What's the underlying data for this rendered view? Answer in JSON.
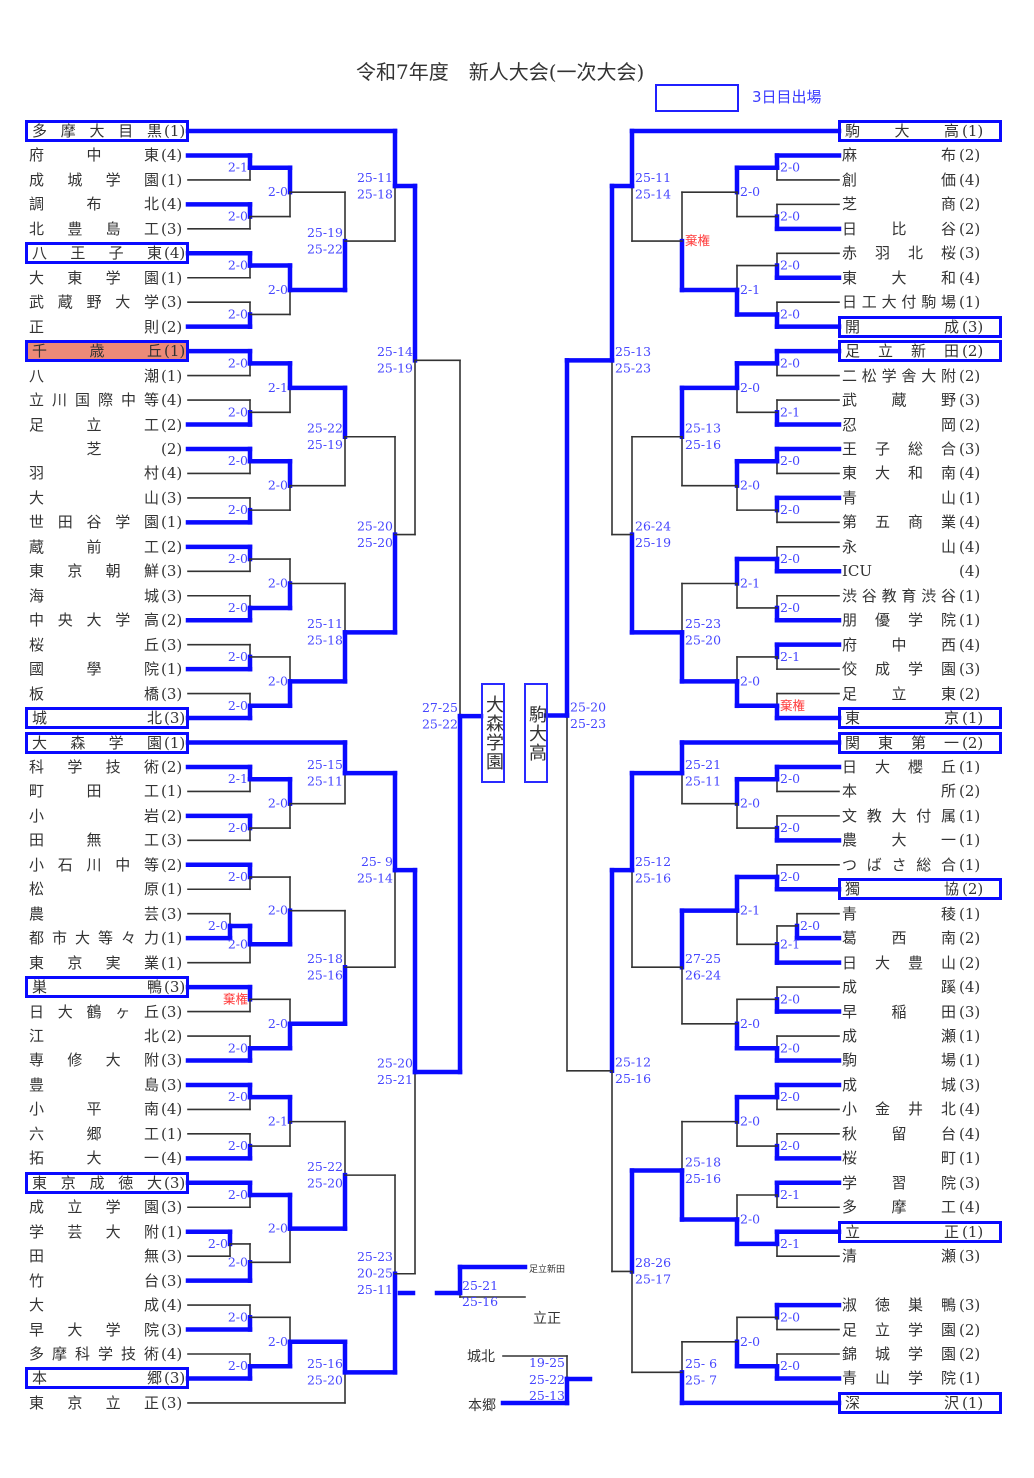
{
  "title": "令和7年度　新人大会(一次大会)",
  "legend": {
    "label": "3日目出場",
    "color": "#0a0aff"
  },
  "colors": {
    "winner_line": "#0a0aff",
    "score_text": "#4646ff",
    "forfeit_text": "#ff3a3a",
    "highlight_fill": "#ec8a78"
  },
  "left_teams": [
    {
      "name": "多摩大目黒",
      "pool": "(1)",
      "boxed": true
    },
    {
      "name": "府中東",
      "pool": "(4)"
    },
    {
      "name": "成城学園",
      "pool": "(1)"
    },
    {
      "name": "調布北",
      "pool": "(4)"
    },
    {
      "name": "北豊島工",
      "pool": "(3)"
    },
    {
      "name": "八王子東",
      "pool": "(4)",
      "boxed": true
    },
    {
      "name": "大東学園",
      "pool": "(1)"
    },
    {
      "name": "武蔵野大学",
      "pool": "(3)"
    },
    {
      "name": "正則",
      "pool": "(2)"
    },
    {
      "name": "千歳丘",
      "pool": "(1)",
      "boxed": true,
      "highlight": true
    },
    {
      "name": "八潮",
      "pool": "(1)"
    },
    {
      "name": "立川国際中等",
      "pool": "(4)"
    },
    {
      "name": "足立工",
      "pool": "(2)"
    },
    {
      "name": "芝",
      "pool": "(2)"
    },
    {
      "name": "羽村",
      "pool": "(4)"
    },
    {
      "name": "大山",
      "pool": "(3)"
    },
    {
      "name": "世田谷学園",
      "pool": "(1)"
    },
    {
      "name": "蔵前工",
      "pool": "(2)"
    },
    {
      "name": "東京朝鮮",
      "pool": "(3)"
    },
    {
      "name": "海城",
      "pool": "(3)"
    },
    {
      "name": "中央大学高",
      "pool": "(2)"
    },
    {
      "name": "桜丘",
      "pool": "(3)"
    },
    {
      "name": "國學院",
      "pool": "(1)"
    },
    {
      "name": "板橋",
      "pool": "(3)"
    },
    {
      "name": "城北",
      "pool": "(3)",
      "boxed": true
    },
    {
      "name": "大森学園",
      "pool": "(1)",
      "boxed": true
    },
    {
      "name": "科学技術",
      "pool": "(2)"
    },
    {
      "name": "町田工",
      "pool": "(1)"
    },
    {
      "name": "小岩",
      "pool": "(2)"
    },
    {
      "name": "田無工",
      "pool": "(3)"
    },
    {
      "name": "小石川中等",
      "pool": "(2)"
    },
    {
      "name": "松原",
      "pool": "(1)"
    },
    {
      "name": "農芸",
      "pool": "(3)"
    },
    {
      "name": "都市大等々力",
      "pool": "(1)"
    },
    {
      "name": "東京実業",
      "pool": "(1)"
    },
    {
      "name": "巣鴨",
      "pool": "(3)",
      "boxed": true
    },
    {
      "name": "日大鶴ヶ丘",
      "pool": "(3)"
    },
    {
      "name": "江北",
      "pool": "(2)"
    },
    {
      "name": "専修大附",
      "pool": "(3)"
    },
    {
      "name": "豊島",
      "pool": "(3)"
    },
    {
      "name": "小平南",
      "pool": "(4)"
    },
    {
      "name": "六郷工",
      "pool": "(1)"
    },
    {
      "name": "拓大一",
      "pool": "(4)"
    },
    {
      "name": "東京成徳大",
      "pool": "(3)",
      "boxed": true
    },
    {
      "name": "成立学園",
      "pool": "(3)"
    },
    {
      "name": "学芸大附",
      "pool": "(1)"
    },
    {
      "name": "田無",
      "pool": "(3)"
    },
    {
      "name": "竹台",
      "pool": "(3)"
    },
    {
      "name": "大成",
      "pool": "(4)"
    },
    {
      "name": "早大学院",
      "pool": "(3)"
    },
    {
      "name": "多摩科学技術",
      "pool": "(4)"
    },
    {
      "name": "本郷",
      "pool": "(3)",
      "boxed": true
    },
    {
      "name": "東京立正",
      "pool": "(3)"
    }
  ],
  "right_teams": [
    {
      "name": "駒大高",
      "pool": "(1)",
      "boxed": true
    },
    {
      "name": "麻布",
      "pool": "(2)"
    },
    {
      "name": "創価",
      "pool": "(4)"
    },
    {
      "name": "芝商",
      "pool": "(2)"
    },
    {
      "name": "日比谷",
      "pool": "(2)"
    },
    {
      "name": "赤羽北桜",
      "pool": "(3)"
    },
    {
      "name": "東大和",
      "pool": "(4)"
    },
    {
      "name": "日工大付駒場",
      "pool": "(1)"
    },
    {
      "name": "開成",
      "pool": "(3)",
      "boxed": true
    },
    {
      "name": "足立新田",
      "pool": "(2)",
      "boxed": true
    },
    {
      "name": "二松学舎大附",
      "pool": "(2)"
    },
    {
      "name": "武蔵野",
      "pool": "(3)"
    },
    {
      "name": "忍岡",
      "pool": "(2)"
    },
    {
      "name": "王子総合",
      "pool": "(3)"
    },
    {
      "name": "東大和南",
      "pool": "(4)"
    },
    {
      "name": "青山",
      "pool": "(1)"
    },
    {
      "name": "第五商業",
      "pool": "(4)"
    },
    {
      "name": "永山",
      "pool": "(4)"
    },
    {
      "name": "ICU",
      "pool": "(4)"
    },
    {
      "name": "渋谷教育渋谷",
      "pool": "(1)"
    },
    {
      "name": "朋優学院",
      "pool": "(1)"
    },
    {
      "name": "府中西",
      "pool": "(4)"
    },
    {
      "name": "佼成学園",
      "pool": "(3)"
    },
    {
      "name": "足立東",
      "pool": "(2)"
    },
    {
      "name": "東京",
      "pool": "(1)",
      "boxed": true
    },
    {
      "name": "関東第一",
      "pool": "(2)",
      "boxed": true
    },
    {
      "name": "日大櫻丘",
      "pool": "(1)"
    },
    {
      "name": "本所",
      "pool": "(2)"
    },
    {
      "name": "文教大付属",
      "pool": "(1)"
    },
    {
      "name": "農大一",
      "pool": "(1)"
    },
    {
      "name": "つばさ総合",
      "pool": "(1)"
    },
    {
      "name": "獨協",
      "pool": "(2)",
      "boxed": true
    },
    {
      "name": "青稜",
      "pool": "(1)"
    },
    {
      "name": "葛西南",
      "pool": "(2)"
    },
    {
      "name": "日大豊山",
      "pool": "(2)"
    },
    {
      "name": "成蹊",
      "pool": "(4)"
    },
    {
      "name": "早稲田",
      "pool": "(3)"
    },
    {
      "name": "成瀬",
      "pool": "(1)"
    },
    {
      "name": "駒場",
      "pool": "(1)"
    },
    {
      "name": "成城",
      "pool": "(3)"
    },
    {
      "name": "小金井北",
      "pool": "(4)"
    },
    {
      "name": "秋留台",
      "pool": "(4)"
    },
    {
      "name": "桜町",
      "pool": "(1)"
    },
    {
      "name": "学習院",
      "pool": "(3)"
    },
    {
      "name": "多摩工",
      "pool": "(4)"
    },
    {
      "name": "立正",
      "pool": "(1)",
      "boxed": true
    },
    {
      "name": "清瀬",
      "pool": "(3)"
    },
    {
      "name": "淑徳巣鴨",
      "pool": "(3)"
    },
    {
      "name": "足立学園",
      "pool": "(2)"
    },
    {
      "name": "錦城学園",
      "pool": "(2)"
    },
    {
      "name": "青山学院",
      "pool": "(1)"
    },
    {
      "name": "深沢",
      "pool": "(1)",
      "boxed": true
    }
  ],
  "left_scores": [
    "2-1",
    "2-0",
    "2-0",
    "2-0",
    "2-0",
    "2-0",
    [
      "25-19",
      "25-22"
    ],
    [
      "25-11",
      "25-18"
    ],
    "2-0",
    "2-0",
    "2-1",
    "2-0",
    "2-0",
    "2-0",
    [
      "25-22",
      "25-19"
    ],
    "2-0",
    "2-0",
    "2-0",
    "2-0",
    "2-0",
    "2-0",
    [
      "25-11",
      "25-18"
    ],
    [
      "25-20",
      "25-20"
    ],
    [
      "25-14",
      "25-19"
    ],
    "2-1",
    "2-0",
    "2-0",
    [
      "25-15",
      "25-11"
    ],
    "2-0",
    "2-0",
    "2-0",
    "2-0",
    "棄権",
    "2-0",
    "2-0",
    [
      "25-18",
      "25-16"
    ],
    [
      "25- 9",
      "25-14"
    ],
    "2-0",
    "2-0",
    "2-1",
    "2-0",
    "2-0",
    "2-0",
    "2-0",
    [
      "25-22",
      "25-20"
    ],
    "2-0",
    "2-0",
    "2-0",
    [
      "25-16",
      "25-20"
    ],
    [
      "25-23",
      "20-25",
      "25-11"
    ],
    [
      "25-20",
      "25-21"
    ],
    [
      "27-25",
      "25-22"
    ]
  ],
  "right_scores": [
    "2-0",
    "2-0",
    "2-0",
    "2-0",
    "2-0",
    "2-1",
    "棄権",
    [
      "25-11",
      "25-14"
    ],
    "2-0",
    "2-1",
    "2-0",
    "2-0",
    "2-0",
    "2-0",
    [
      "25-13",
      "25-16"
    ],
    "2-0",
    "2-0",
    "2-1",
    "2-1",
    "棄権",
    "2-0",
    [
      "25-23",
      "25-20"
    ],
    [
      "26-24",
      "25-19"
    ],
    [
      "25-13",
      "25-23"
    ],
    "2-0",
    "2-0",
    "2-0",
    [
      "25-21",
      "25-11"
    ],
    "2-0",
    "2-0",
    "2-1",
    "2-1",
    "2-0",
    "2-0",
    "2-0",
    [
      "27-25",
      "26-24"
    ],
    [
      "25-12",
      "25-16"
    ],
    "2-0",
    "2-0",
    "2-0",
    "2-1",
    "2-1",
    "2-0",
    [
      "25-18",
      "25-16"
    ],
    "2-0",
    "2-0",
    "2-0",
    [
      "25- 6",
      "25- 7"
    ],
    [
      "28-26",
      "25-17"
    ],
    [
      "25-12",
      "25-16"
    ],
    [
      "25-20",
      "25-23"
    ]
  ],
  "finalists": {
    "left": "大森学園",
    "right": "駒大高"
  },
  "playoff_a": {
    "top": "足立新田",
    "bottom": "立正",
    "scores": [
      "25-21",
      "25-16"
    ]
  },
  "playoff_b": {
    "top": "城北",
    "bottom": "本郷",
    "scores": [
      "19-25",
      "25-22",
      "25-13"
    ]
  }
}
